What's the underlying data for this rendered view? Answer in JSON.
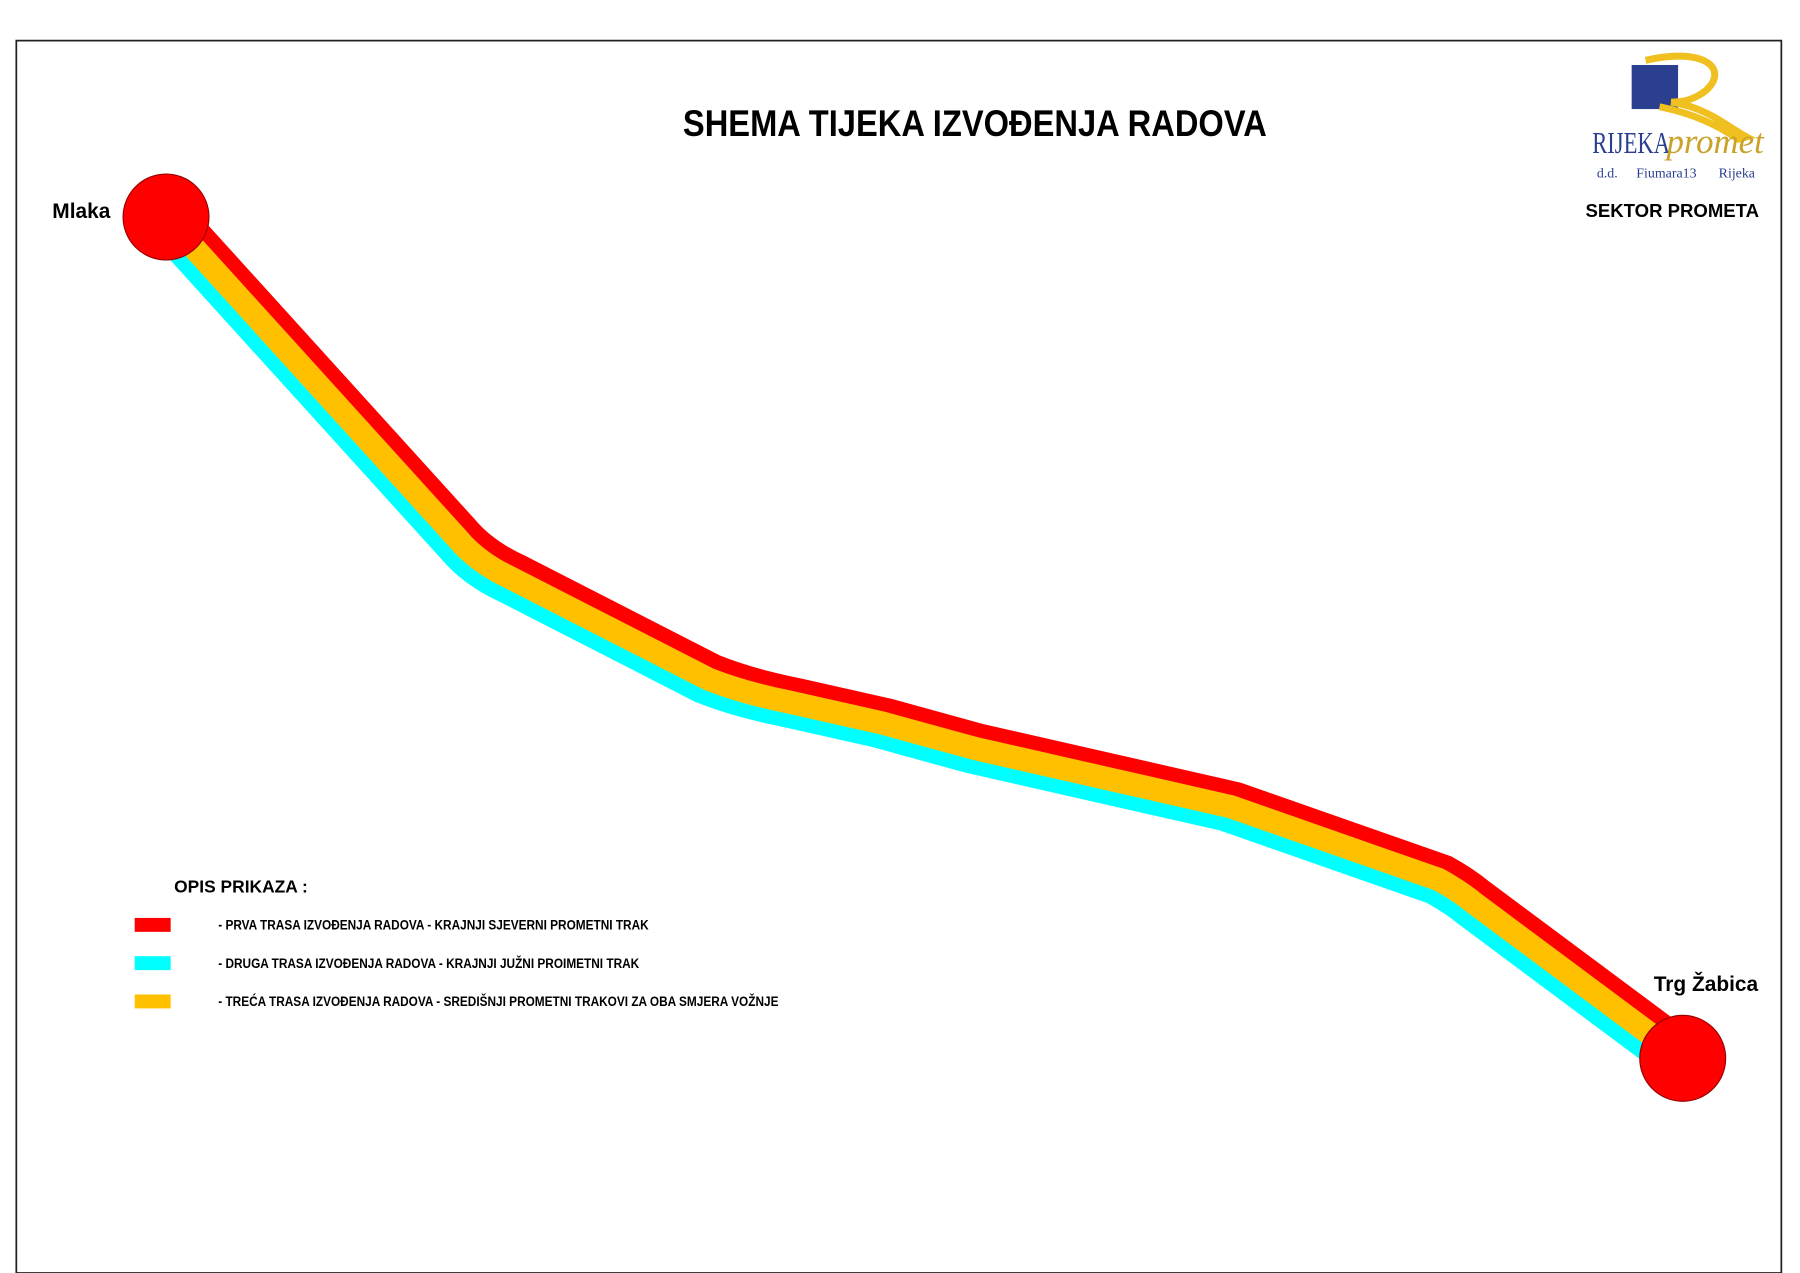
{
  "header": {
    "title": "SHEMA TIJEKA IZVOĐENJA RADOVA"
  },
  "logo": {
    "brand_a": "RIJEKA",
    "brand_b": "promet",
    "address_a": "d.d.",
    "address_b": "Fiumara13",
    "address_c": "Rijeka",
    "sector": "SEKTOR PROMETA"
  },
  "nodes": [
    {
      "label": "Mlaka"
    },
    {
      "label": "Trg Žabica"
    }
  ],
  "legend": {
    "title": "OPIS PRIKAZA :",
    "items": [
      {
        "label": "- PRVA TRASA IZVOĐENJA RADOVA - KRAJNJI SJEVERNI PROMETNI TRAK",
        "color": "#ff0000"
      },
      {
        "label": "- DRUGA TRASA IZVOĐENJA RADOVA - KRAJNJI JUŽNI PROIMETNI TRAK",
        "color": "#00ffff"
      },
      {
        "label": "- TREĆA TRASA IZVOĐENJA RADOVA - SREDIŠNJI PROMETNI TRAKOVI ZA OBA SMJERA VOŽNJE",
        "color": "#ffc000"
      }
    ]
  }
}
